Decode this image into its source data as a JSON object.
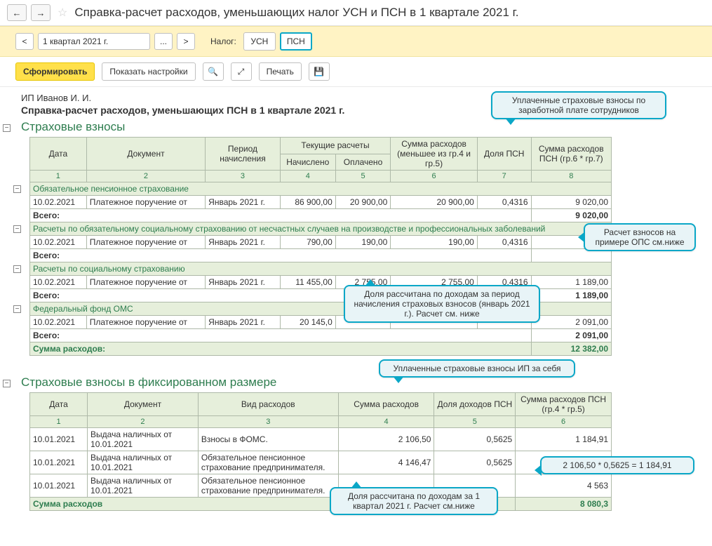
{
  "title": "Справка-расчет расходов, уменьшающих налог УСН и ПСН в 1 квартале 2021 г.",
  "nav": {
    "back": "←",
    "forward": "→",
    "star": "☆"
  },
  "periodbar": {
    "prev": "<",
    "next": ">",
    "period": "1 квартал 2021 г.",
    "ellipsis": "...",
    "tax_label": "Налог:",
    "usn": "УСН",
    "psn": "ПСН"
  },
  "toolbar": {
    "form": "Сформировать",
    "settings": "Показать настройки",
    "print": "Печать",
    "zoom_icon": "🔍",
    "expand_icon": "⤢",
    "save_icon": "💾"
  },
  "report": {
    "org": "ИП Иванов И. И.",
    "rep_title": "Справка-расчет расходов, уменьшающих ПСН в 1 квартале 2021 г.",
    "toggle_minus": "−",
    "toggle_plus": "+",
    "section1": {
      "head": "Страховые взносы",
      "headers": {
        "date": "Дата",
        "doc": "Документ",
        "period": "Период начисления",
        "cur": "Текущие расчеты",
        "accr": "Начислено",
        "paid": "Оплачено",
        "sum": "Сумма расходов (меньшее из гр.4 и гр.5)",
        "share": "Доля ПСН",
        "sum_psn": "Сумма расходов ПСН (гр.6 * гр.7)"
      },
      "cols": [
        "1",
        "2",
        "3",
        "4",
        "5",
        "6",
        "7",
        "8"
      ],
      "groups": [
        {
          "title": "Обязательное пенсионное страхование",
          "rows": [
            {
              "date": "10.02.2021",
              "doc": "Платежное поручение от",
              "period": "Январь 2021 г.",
              "accr": "86 900,00",
              "paid": "20 900,00",
              "sum": "20 900,00",
              "share": "0,4316",
              "psn": "9 020,00"
            }
          ],
          "total_label": "Всего:",
          "total": "9 020,00"
        },
        {
          "title": "Расчеты по обязательному социальному страхованию от несчастных случаев на производстве и профессиональных заболеваний",
          "rows": [
            {
              "date": "10.02.2021",
              "doc": "Платежное поручение от",
              "period": "Январь 2021 г.",
              "accr": "790,00",
              "paid": "190,00",
              "sum": "190,00",
              "share": "0,4316",
              "psn": ""
            }
          ],
          "total_label": "Всего:",
          "total": ""
        },
        {
          "title": "Расчеты по социальному страхованию",
          "rows": [
            {
              "date": "10.02.2021",
              "doc": "Платежное поручение от",
              "period": "Январь 2021 г.",
              "accr": "11 455,00",
              "paid": "2 755,00",
              "sum": "2 755,00",
              "share": "0,4316",
              "psn": "1 189,00"
            }
          ],
          "total_label": "Всего:",
          "total": "1 189,00"
        },
        {
          "title": "Федеральный фонд ОМС",
          "rows": [
            {
              "date": "10.02.2021",
              "doc": "Платежное поручение от",
              "period": "Январь 2021 г.",
              "accr": "20 145,0",
              "paid": "",
              "sum": "",
              "share": "",
              "psn": "2 091,00"
            }
          ],
          "total_label": "Всего:",
          "total": "2 091,00"
        }
      ],
      "grand_label": "Сумма расходов:",
      "grand_total": "12 382,00"
    },
    "section2": {
      "head": "Страховые взносы в фиксированном размере",
      "headers": {
        "date": "Дата",
        "doc": "Документ",
        "kind": "Вид расходов",
        "sum": "Сумма расходов",
        "share": "Доля доходов ПСН",
        "sum_psn": "Сумма расходов ПСН (гр.4 * гр.5)"
      },
      "cols": [
        "1",
        "2",
        "3",
        "4",
        "5",
        "6"
      ],
      "rows": [
        {
          "date": "10.01.2021",
          "doc": "Выдача наличных  от 10.01.2021",
          "kind": "Взносы в ФОМС.",
          "sum": "2 106,50",
          "share": "0,5625",
          "psn": "1 184,91"
        },
        {
          "date": "10.01.2021",
          "doc": "Выдача наличных  от 10.01.2021",
          "kind": "Обязательное пенсионное страхование предпринимателя.",
          "sum": "4 146,47",
          "share": "0,5625",
          "psn": ""
        },
        {
          "date": "10.01.2021",
          "doc": "Выдача наличных  от 10.01.2021",
          "kind": "Обязательное пенсионное страхование предпринимателя.",
          "sum": "",
          "share": "",
          "psn": "4 563"
        }
      ],
      "grand_label": "Сумма расходов",
      "grand_total": "8 080,3"
    }
  },
  "callouts": {
    "c1": "Уплаченные страховые взносы по заработной плате сотрудников",
    "c2": "Расчет взносов на примере ОПС см.ниже",
    "c3": "Доля рассчитана по доходам за период начисления страховых взносов (январь 2021 г.). Расчет см. ниже",
    "c4": "Уплаченные страховые взносы ИП за себя",
    "c5": "2 106,50 * 0,5625 = 1 184,91",
    "c6": "Доля рассчитана по доходам за 1 квартал 2021 г. Расчет см.ниже"
  },
  "colors": {
    "accent_yellow": "#ffe04a",
    "accent_teal": "#0aa7c7",
    "table_green_bg": "#e6efdb",
    "section_green": "#2e7d4f"
  }
}
